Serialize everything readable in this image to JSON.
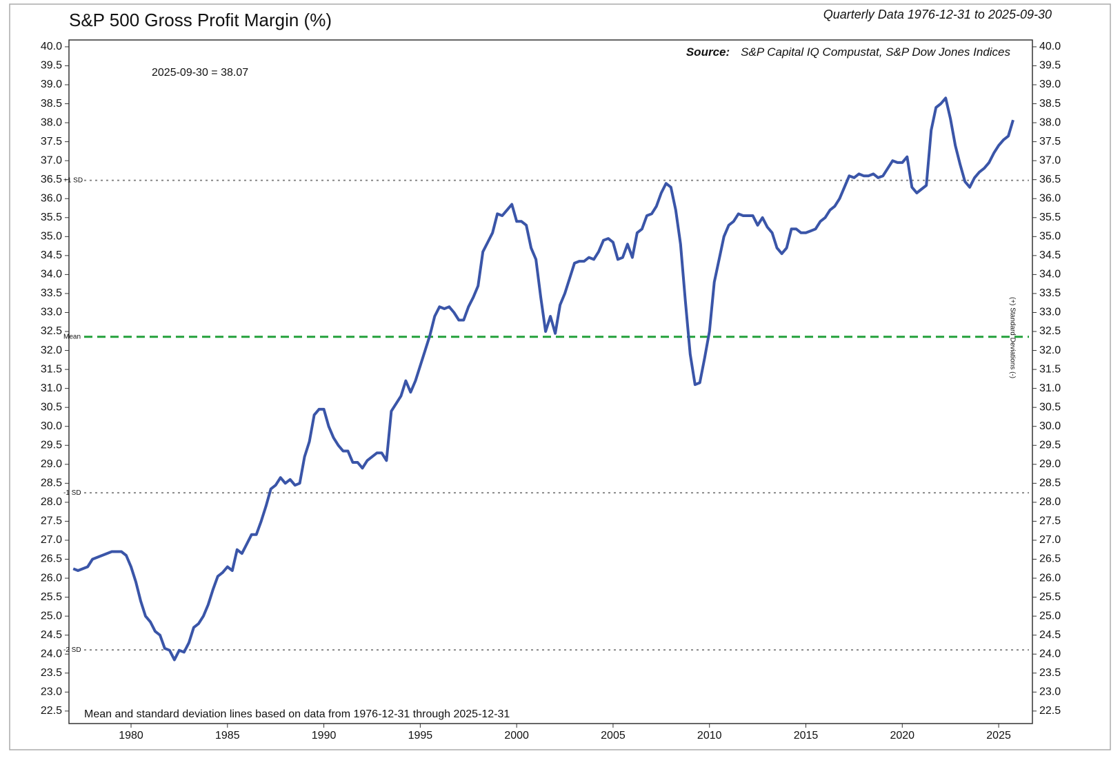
{
  "chart_data": {
    "type": "line",
    "title": "S&P 500 Gross Profit Margin (%)",
    "subtitle": "Quarterly Data 1976-12-31 to 2025-09-30",
    "source_label": "Source:",
    "source": "S&P Capital IQ Compustat, S&P Dow Jones Indices",
    "annotation": "2025-09-30 = 38.07",
    "footnote": "Mean and standard deviation lines based on data from 1976-12-31 through 2025-12-31",
    "y2_label": "(+) Standard Deviations (-)",
    "color": "#3a55a8",
    "x": [
      1977.0,
      1977.25,
      1977.75,
      1978.0,
      1978.5,
      1979.0,
      1979.5,
      1979.75,
      1980.0,
      1980.25,
      1980.5,
      1980.75,
      1981.0,
      1981.25,
      1981.5,
      1981.75,
      1982.0,
      1982.25,
      1982.5,
      1982.75,
      1983.0,
      1983.25,
      1983.5,
      1983.75,
      1984.0,
      1984.25,
      1984.5,
      1984.75,
      1985.0,
      1985.25,
      1985.5,
      1985.75,
      1986.0,
      1986.25,
      1986.5,
      1986.75,
      1987.0,
      1987.25,
      1987.5,
      1987.75,
      1988.0,
      1988.25,
      1988.5,
      1988.75,
      1989.0,
      1989.25,
      1989.5,
      1989.75,
      1990.0,
      1990.25,
      1990.5,
      1990.75,
      1991.0,
      1991.25,
      1991.5,
      1991.75,
      1992.0,
      1992.25,
      1992.5,
      1992.75,
      1993.0,
      1993.25,
      1993.5,
      1993.75,
      1994.0,
      1994.25,
      1994.5,
      1994.75,
      1995.0,
      1995.25,
      1995.5,
      1995.75,
      1996.0,
      1996.25,
      1996.5,
      1996.75,
      1997.0,
      1997.25,
      1997.5,
      1997.75,
      1998.0,
      1998.25,
      1998.5,
      1998.75,
      1999.0,
      1999.25,
      1999.5,
      1999.75,
      2000.0,
      2000.25,
      2000.5,
      2000.75,
      2001.0,
      2001.25,
      2001.5,
      2001.75,
      2002.0,
      2002.25,
      2002.5,
      2002.75,
      2003.0,
      2003.25,
      2003.5,
      2003.75,
      2004.0,
      2004.25,
      2004.5,
      2004.75,
      2005.0,
      2005.25,
      2005.5,
      2005.75,
      2006.0,
      2006.25,
      2006.5,
      2006.75,
      2007.0,
      2007.25,
      2007.5,
      2007.75,
      2008.0,
      2008.25,
      2008.5,
      2008.75,
      2009.0,
      2009.25,
      2009.5,
      2009.75,
      2010.0,
      2010.25,
      2010.5,
      2010.75,
      2011.0,
      2011.25,
      2011.5,
      2011.75,
      2012.0,
      2012.25,
      2012.5,
      2012.75,
      2013.0,
      2013.25,
      2013.5,
      2013.75,
      2014.0,
      2014.25,
      2014.5,
      2014.75,
      2015.0,
      2015.25,
      2015.5,
      2015.75,
      2016.0,
      2016.25,
      2016.5,
      2016.75,
      2017.0,
      2017.25,
      2017.5,
      2017.75,
      2018.0,
      2018.25,
      2018.5,
      2018.75,
      2019.0,
      2019.25,
      2019.5,
      2019.75,
      2020.0,
      2020.25,
      2020.5,
      2020.75,
      2021.0,
      2021.25,
      2021.5,
      2021.75,
      2022.0,
      2022.25,
      2022.5,
      2022.75,
      2023.0,
      2023.25,
      2023.5,
      2023.75,
      2024.0,
      2024.25,
      2024.5,
      2024.75,
      2025.0,
      2025.25,
      2025.5,
      2025.75
    ],
    "values": [
      26.25,
      26.2,
      26.3,
      26.5,
      26.6,
      26.7,
      26.7,
      26.6,
      26.3,
      25.9,
      25.4,
      25.0,
      24.85,
      24.6,
      24.5,
      24.15,
      24.1,
      23.85,
      24.1,
      24.05,
      24.3,
      24.7,
      24.8,
      25.0,
      25.3,
      25.7,
      26.05,
      26.15,
      26.3,
      26.2,
      26.75,
      26.65,
      26.9,
      27.15,
      27.15,
      27.5,
      27.9,
      28.35,
      28.45,
      28.65,
      28.5,
      28.6,
      28.45,
      28.5,
      29.2,
      29.6,
      30.3,
      30.45,
      30.45,
      30.0,
      29.7,
      29.5,
      29.35,
      29.35,
      29.05,
      29.05,
      28.9,
      29.1,
      29.2,
      29.3,
      29.3,
      29.1,
      30.4,
      30.6,
      30.8,
      31.2,
      30.9,
      31.2,
      31.6,
      32.0,
      32.4,
      32.9,
      33.15,
      33.1,
      33.15,
      33.0,
      32.8,
      32.8,
      33.15,
      33.4,
      33.7,
      34.6,
      34.85,
      35.1,
      35.6,
      35.55,
      35.7,
      35.85,
      35.4,
      35.4,
      35.3,
      34.7,
      34.4,
      33.4,
      32.5,
      32.9,
      32.45,
      33.2,
      33.5,
      33.9,
      34.3,
      34.35,
      34.35,
      34.45,
      34.4,
      34.6,
      34.9,
      34.95,
      34.85,
      34.4,
      34.45,
      34.8,
      34.45,
      35.1,
      35.2,
      35.55,
      35.6,
      35.8,
      36.15,
      36.4,
      36.3,
      35.7,
      34.8,
      33.3,
      31.9,
      31.1,
      31.15,
      31.8,
      32.5,
      33.8,
      34.4,
      35.0,
      35.3,
      35.4,
      35.6,
      35.55,
      35.55,
      35.55,
      35.3,
      35.5,
      35.25,
      35.1,
      34.7,
      34.55,
      34.7,
      35.2,
      35.2,
      35.1,
      35.1,
      35.15,
      35.2,
      35.4,
      35.5,
      35.7,
      35.8,
      36.0,
      36.3,
      36.6,
      36.55,
      36.65,
      36.6,
      36.6,
      36.65,
      36.55,
      36.6,
      36.8,
      37.0,
      36.95,
      36.95,
      37.1,
      36.3,
      36.15,
      36.25,
      36.35,
      37.8,
      38.4,
      38.5,
      38.65,
      38.1,
      37.4,
      36.9,
      36.45,
      36.3,
      36.55,
      36.7,
      36.8,
      36.95,
      37.2,
      37.4,
      37.55,
      37.65,
      38.07
    ],
    "reference_lines": [
      {
        "label": "+1 SD",
        "value": 36.48,
        "color": "#888888"
      },
      {
        "label": "Mean",
        "value": 32.36,
        "color": "#22a03a"
      },
      {
        "label": "-1 SD",
        "value": 28.25,
        "color": "#888888"
      },
      {
        "label": "-2 SD",
        "value": 24.11,
        "color": "#888888"
      }
    ],
    "xlim": [
      1976.78,
      2026.75
    ],
    "xticks": [
      1980,
      1985,
      1990,
      1995,
      2000,
      2005,
      2010,
      2015,
      2020,
      2025
    ],
    "ylim": [
      22.17,
      40.18
    ],
    "yticks": [
      {
        "value": 22.5,
        "label": "22.5"
      },
      {
        "value": 23,
        "label": "23.0"
      },
      {
        "value": 23.5,
        "label": "23.5"
      },
      {
        "value": 24,
        "label": "24.0"
      },
      {
        "value": 24.5,
        "label": "24.5"
      },
      {
        "value": 25,
        "label": "25.0"
      },
      {
        "value": 25.5,
        "label": "25.5"
      },
      {
        "value": 26,
        "label": "26.0"
      },
      {
        "value": 26.5,
        "label": "26.5"
      },
      {
        "value": 27,
        "label": "27.0"
      },
      {
        "value": 27.5,
        "label": "27.5"
      },
      {
        "value": 28,
        "label": "28.0"
      },
      {
        "value": 28.5,
        "label": "28.5"
      },
      {
        "value": 29,
        "label": "29.0"
      },
      {
        "value": 29.5,
        "label": "29.5"
      },
      {
        "value": 30,
        "label": "30.0"
      },
      {
        "value": 30.5,
        "label": "30.5"
      },
      {
        "value": 31,
        "label": "31.0"
      },
      {
        "value": 31.5,
        "label": "31.5"
      },
      {
        "value": 32,
        "label": "32.0"
      },
      {
        "value": 32.5,
        "label": "32.5"
      },
      {
        "value": 33,
        "label": "33.0"
      },
      {
        "value": 33.5,
        "label": "33.5"
      },
      {
        "value": 34,
        "label": "34.0"
      },
      {
        "value": 34.5,
        "label": "34.5"
      },
      {
        "value": 35,
        "label": "35.0"
      },
      {
        "value": 35.5,
        "label": "35.5"
      },
      {
        "value": 36,
        "label": "36.0"
      },
      {
        "value": 36.5,
        "label": "36.5"
      },
      {
        "value": 37,
        "label": "37.0"
      },
      {
        "value": 37.5,
        "label": "37.5"
      },
      {
        "value": 38,
        "label": "38.0"
      },
      {
        "value": 38.5,
        "label": "38.5"
      },
      {
        "value": 39,
        "label": "39.0"
      },
      {
        "value": 39.5,
        "label": "39.5"
      },
      {
        "value": 40,
        "label": "40.0"
      }
    ],
    "grid": false
  }
}
